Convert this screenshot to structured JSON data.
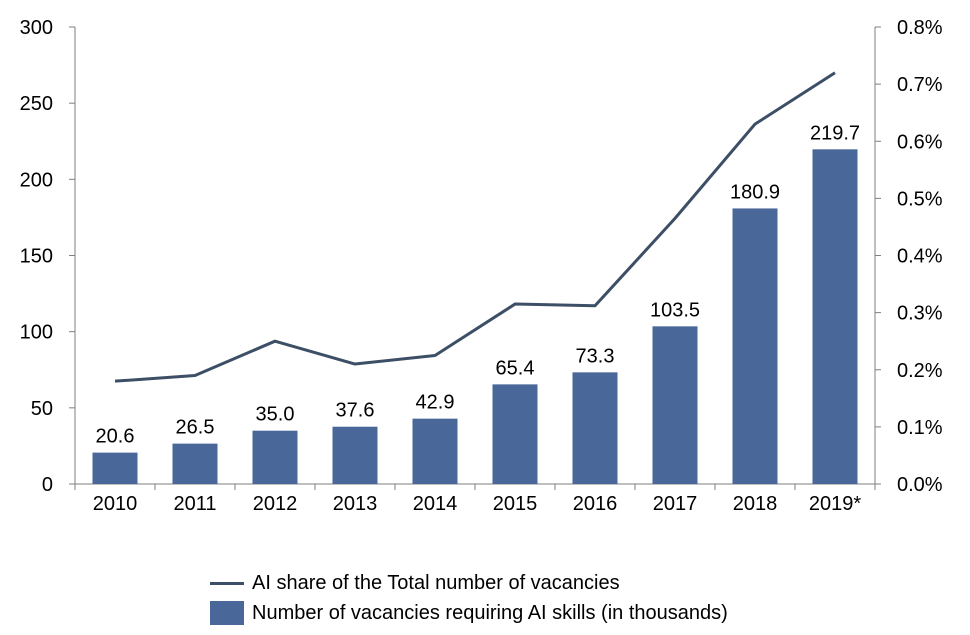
{
  "chart_data": {
    "type": "bar",
    "categories": [
      "2010",
      "2011",
      "2012",
      "2013",
      "2014",
      "2015",
      "2016",
      "2017",
      "2018",
      "2019*"
    ],
    "series": [
      {
        "name": "Number of vacancies requiring AI skills (in thousands)",
        "type": "bar",
        "axis": "left",
        "color": "#4a6799",
        "values": [
          20.6,
          26.5,
          35.0,
          37.6,
          42.9,
          65.4,
          73.3,
          103.5,
          180.9,
          219.7
        ],
        "labels": [
          "20.6",
          "26.5",
          "35.0",
          "37.6",
          "42.9",
          "65.4",
          "73.3",
          "103.5",
          "180.9",
          "219.7"
        ]
      },
      {
        "name": "AI share of the Total number of vacancies",
        "type": "line",
        "axis": "right",
        "color": "#3d4f66",
        "values": [
          0.18,
          0.19,
          0.25,
          0.21,
          0.225,
          0.315,
          0.312,
          0.465,
          0.63,
          0.72
        ]
      }
    ],
    "y_left": {
      "min": 0,
      "max": 300,
      "ticks": [
        "0",
        "50",
        "100",
        "150",
        "200",
        "250",
        "300"
      ]
    },
    "y_right": {
      "min": 0,
      "max": 0.8,
      "ticks": [
        "0.0%",
        "0.1%",
        "0.2%",
        "0.3%",
        "0.4%",
        "0.5%",
        "0.6%",
        "0.7%",
        "0.8%"
      ]
    },
    "grid": false,
    "legend_position": "bottom"
  }
}
